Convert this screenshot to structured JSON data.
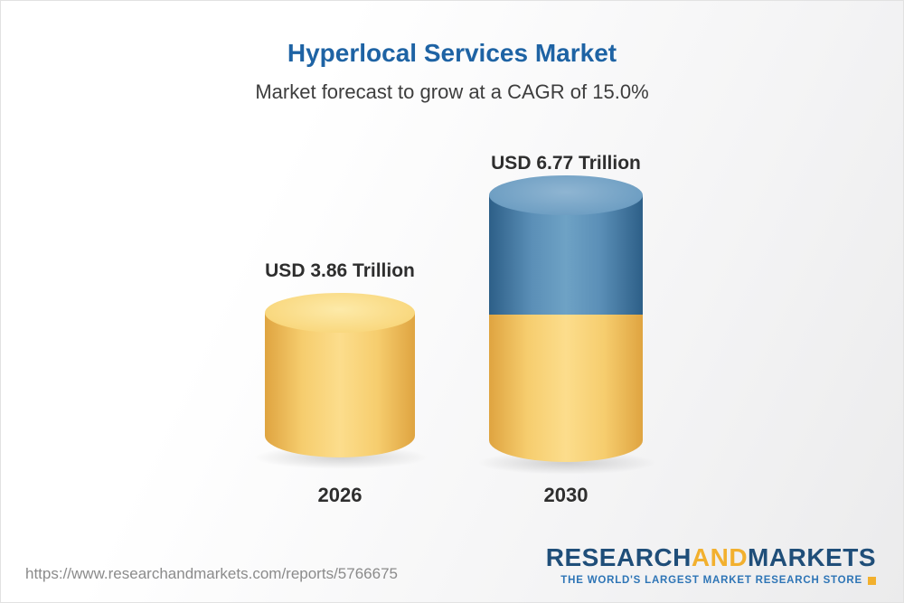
{
  "header": {
    "title": "Hyperlocal Services Market",
    "subtitle": "Market forecast to grow at a CAGR of 15.0%"
  },
  "chart_data": {
    "type": "bar",
    "title": "Hyperlocal Services Market",
    "subtitle": "Market forecast to grow at a CAGR of 15.0%",
    "unit": "USD Trillion",
    "cagr_percent": 15.0,
    "categories": [
      "2026",
      "2030"
    ],
    "values": [
      3.86,
      6.77
    ],
    "bars": [
      {
        "category": "2026",
        "value": 3.86,
        "label": "USD 3.86 Trillion",
        "segments": [
          {
            "name": "base",
            "value": 3.86,
            "color": "#f6cd6e"
          }
        ]
      },
      {
        "category": "2030",
        "value": 6.77,
        "label": "USD 6.77 Trillion",
        "segments": [
          {
            "name": "base",
            "value": 3.86,
            "color": "#f6cd6e"
          },
          {
            "name": "growth",
            "value": 2.91,
            "color": "#5b8fb7"
          }
        ]
      }
    ],
    "colors": {
      "gold": "#f6cd6e",
      "gold_edge": "#dfa440",
      "blue": "#5b8fb7",
      "blue_edge": "#2d5f88",
      "title_blue": "#1e63a4"
    },
    "legend": "none",
    "grid": false
  },
  "footer": {
    "url": "https://www.researchandmarkets.com/reports/5766675",
    "logo": {
      "part1": "RESEARCH",
      "part2": "AND",
      "part3": "MARKETS",
      "tagline": "THE WORLD'S LARGEST MARKET RESEARCH STORE",
      "brand_blue": "#1f4e79",
      "brand_gold": "#f2b02e"
    }
  }
}
